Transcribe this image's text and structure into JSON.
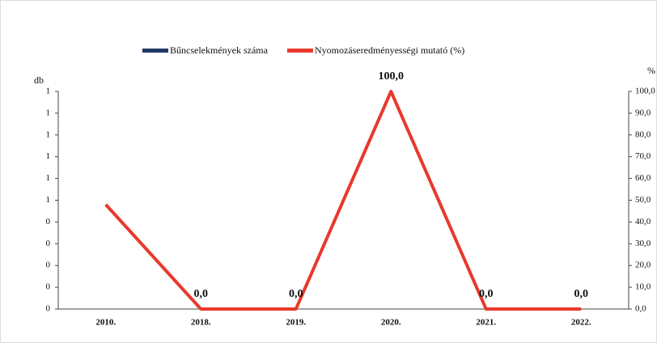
{
  "chart_data": {
    "type": "bar-line",
    "ylabel": "db",
    "y2label": "%",
    "categories": [
      "2010.",
      "2018.",
      "2019.",
      "2020.",
      "2021.",
      "2022."
    ],
    "series": [
      {
        "name": "Bűncselekmények száma",
        "color": "#1f3864",
        "type": "bar",
        "values": [
          0,
          0,
          0,
          0,
          0,
          0
        ]
      },
      {
        "name": "Nyomozáseredményességi mutató (%)",
        "color": "#e8392c",
        "type": "line",
        "axis": "y2",
        "values": [
          48,
          0,
          0,
          100,
          0,
          0
        ],
        "value_labels": [
          null,
          "0,0",
          "0,0",
          "100,0",
          "0,0",
          "0,0"
        ]
      }
    ],
    "ylim": [
      0,
      1
    ],
    "yticks": [
      0,
      {
        "value": 0.1,
        "label": "0"
      },
      {
        "value": 0.2,
        "label": "0"
      },
      {
        "value": 0.3,
        "label": "0"
      },
      {
        "value": 0.4,
        "label": "0"
      },
      {
        "value": 0.5,
        "label": "1"
      },
      {
        "value": 0.6,
        "label": "1"
      },
      {
        "value": 0.7,
        "label": "1"
      },
      {
        "value": 0.8,
        "label": "1"
      },
      {
        "value": 0.9,
        "label": "1"
      },
      1
    ],
    "y2lim": [
      0,
      100
    ],
    "y2ticks": [
      {
        "value": 0,
        "label": "0,0"
      },
      {
        "value": 10,
        "label": "10,0"
      },
      {
        "value": 20,
        "label": "20,0"
      },
      {
        "value": 30,
        "label": "30,0"
      },
      {
        "value": 40,
        "label": "40,0"
      },
      {
        "value": 50,
        "label": "50,0"
      },
      {
        "value": 60,
        "label": "60,0"
      },
      {
        "value": 70,
        "label": "70,0"
      },
      {
        "value": 80,
        "label": "80,0"
      },
      {
        "value": 90,
        "label": "90,0"
      },
      {
        "value": 100,
        "label": "100,0"
      }
    ],
    "legend": "top"
  }
}
